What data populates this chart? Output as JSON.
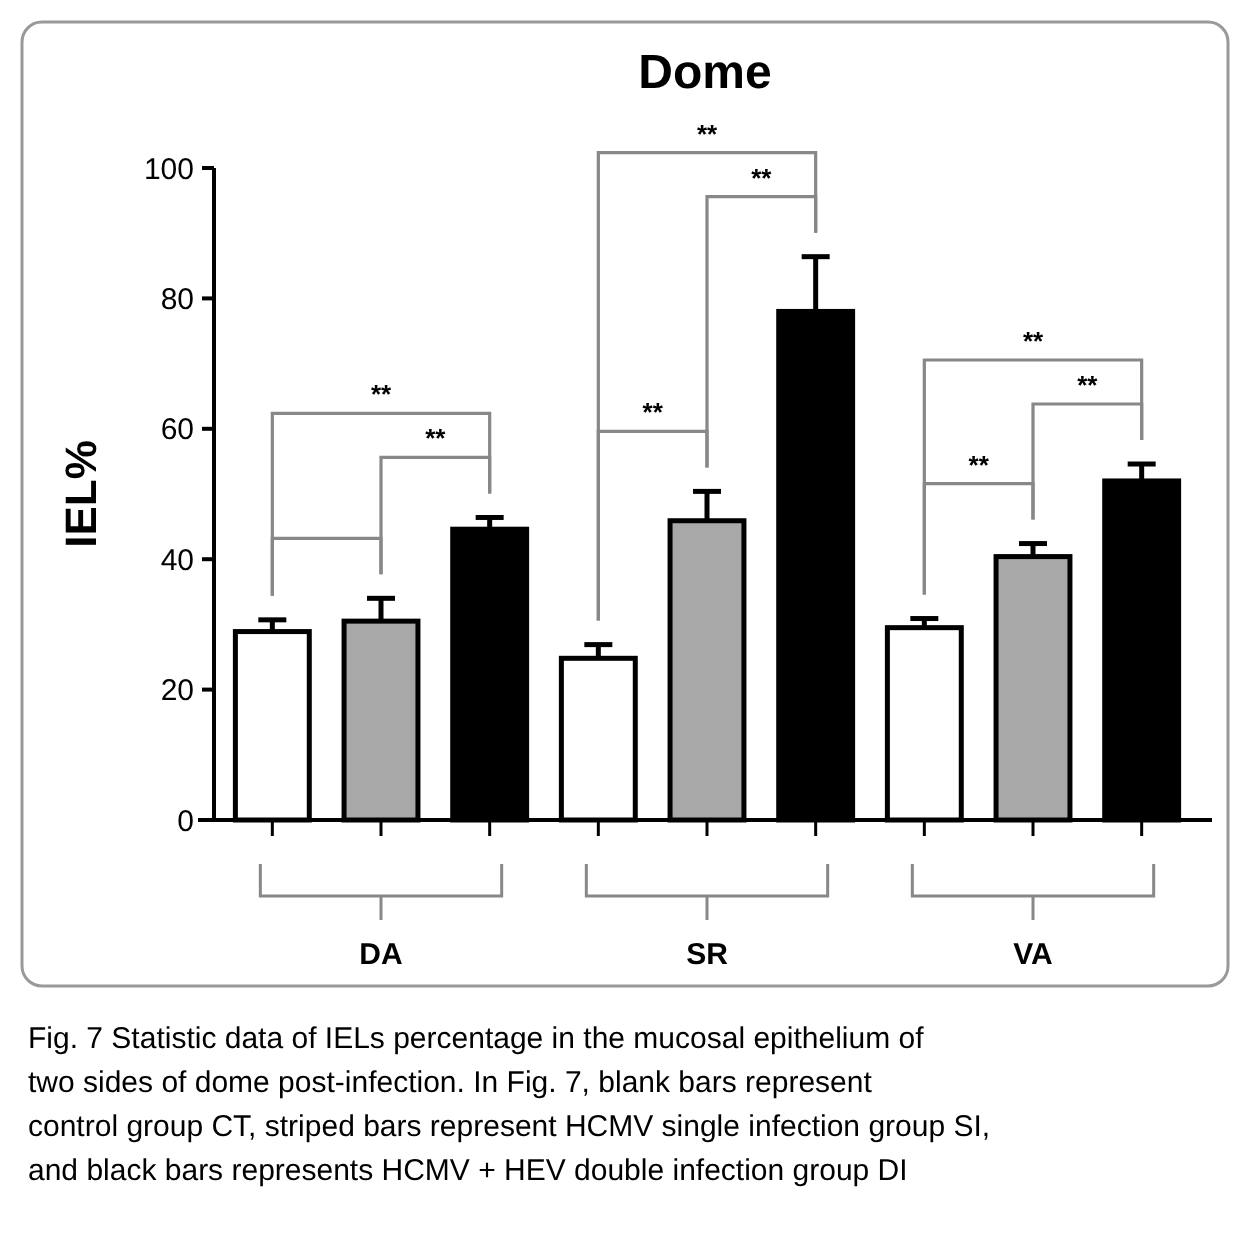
{
  "chart_data": {
    "type": "bar",
    "title": "Dome",
    "ylabel": "IEL%",
    "categories": [
      "DA",
      "SR",
      "VA"
    ],
    "series": [
      {
        "color": "#ffffff",
        "values": [
          28.9,
          24.8,
          29.5
        ],
        "errors": [
          [
            28.9,
            30.7
          ],
          [
            24.8,
            26.9
          ],
          [
            29.5,
            30.9
          ]
        ]
      },
      {
        "color": "#a8a8a8",
        "values": [
          30.5,
          45.9,
          40.4
        ],
        "errors": [
          [
            30.5,
            34
          ],
          [
            45.9,
            50.4
          ],
          [
            40.4,
            42.4
          ]
        ]
      },
      {
        "color": "#000000",
        "values": [
          44.6,
          78,
          52
        ],
        "errors": [
          [
            44.6,
            46.4
          ],
          [
            78,
            86.4
          ],
          [
            52,
            54.6
          ]
        ]
      }
    ],
    "ylim": [
      0,
      100
    ],
    "yticks": [
      0,
      20,
      40,
      60,
      80,
      100
    ],
    "grid": false,
    "legend": false,
    "annotations": [
      "**",
      "**",
      "**",
      "**",
      "**",
      "**",
      "**",
      "**",
      "Fig. 7 Statistic data of IELs percentage in the mucosal epithelium of two sides of dome post-infection. In Fig. 7, blank bars represent control group CT, striped bars represent HCMV single infection group SI, and black bars represents HCMV + HEV double infection group DI"
    ]
  }
}
